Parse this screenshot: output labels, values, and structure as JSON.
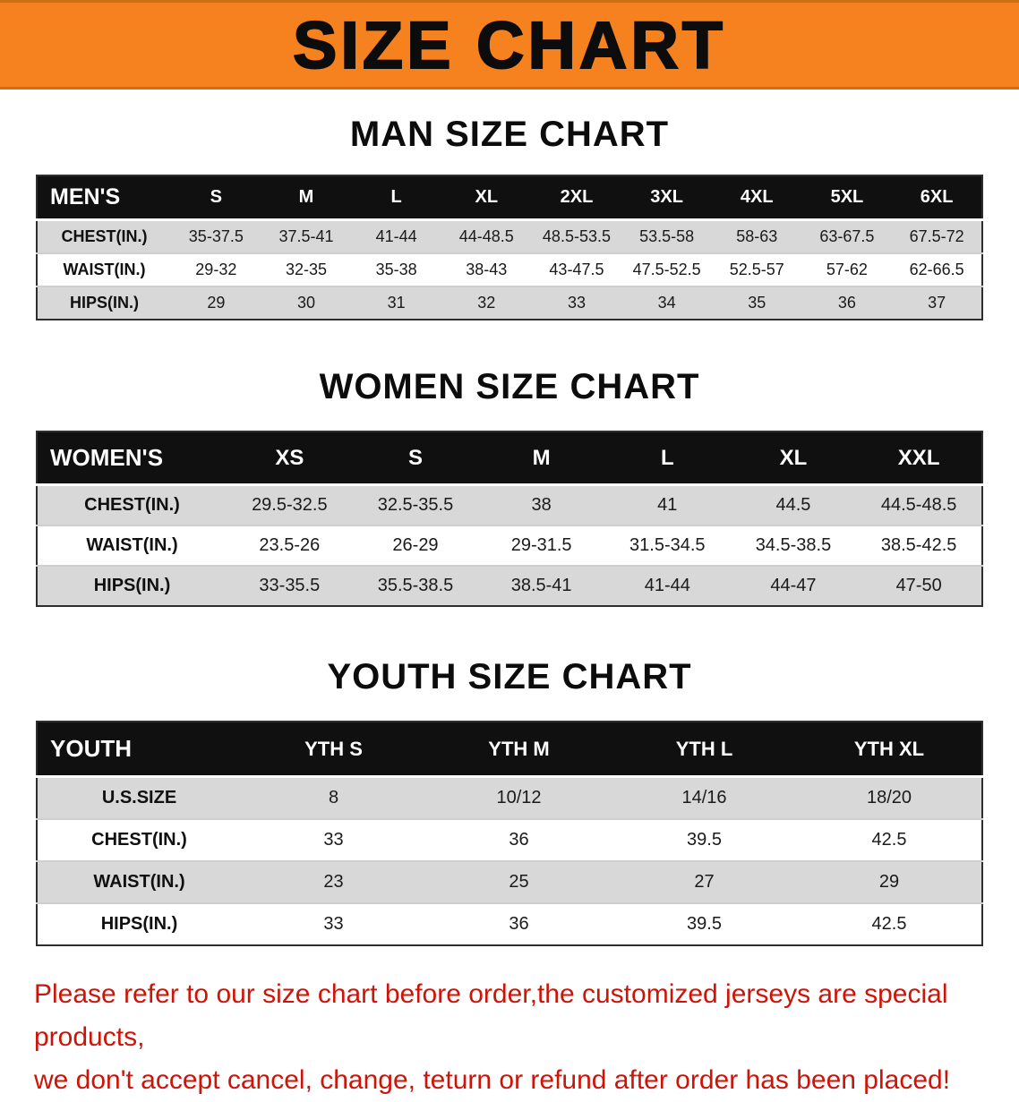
{
  "banner": {
    "title": "SIZE CHART",
    "background_color": "#F5821F",
    "text_color": "#0C0C0C"
  },
  "sections": {
    "men": {
      "heading": "MAN SIZE CHART",
      "table": {
        "header": [
          "MEN'S",
          "S",
          "M",
          "L",
          "XL",
          "2XL",
          "3XL",
          "4XL",
          "5XL",
          "6XL"
        ],
        "rows": [
          [
            "CHEST(IN.)",
            "35-37.5",
            "37.5-41",
            "41-44",
            "44-48.5",
            "48.5-53.5",
            "53.5-58",
            "58-63",
            "63-67.5",
            "67.5-72"
          ],
          [
            "WAIST(IN.)",
            "29-32",
            "32-35",
            "35-38",
            "38-43",
            "43-47.5",
            "47.5-52.5",
            "52.5-57",
            "57-62",
            "62-66.5"
          ],
          [
            "HIPS(IN.)",
            "29",
            "30",
            "31",
            "32",
            "33",
            "34",
            "35",
            "36",
            "37"
          ]
        ]
      }
    },
    "women": {
      "heading": "WOMEN SIZE CHART",
      "table": {
        "header": [
          "WOMEN'S",
          "XS",
          "S",
          "M",
          "L",
          "XL",
          "XXL"
        ],
        "rows": [
          [
            "CHEST(IN.)",
            "29.5-32.5",
            "32.5-35.5",
            "38",
            "41",
            "44.5",
            "44.5-48.5"
          ],
          [
            "WAIST(IN.)",
            "23.5-26",
            "26-29",
            "29-31.5",
            "31.5-34.5",
            "34.5-38.5",
            "38.5-42.5"
          ],
          [
            "HIPS(IN.)",
            "33-35.5",
            "35.5-38.5",
            "38.5-41",
            "41-44",
            "44-47",
            "47-50"
          ]
        ]
      }
    },
    "youth": {
      "heading": "YOUTH SIZE CHART",
      "table": {
        "header": [
          "YOUTH",
          "YTH S",
          "YTH M",
          "YTH L",
          "YTH XL"
        ],
        "rows": [
          [
            "U.S.SIZE",
            "8",
            "10/12",
            "14/16",
            "18/20"
          ],
          [
            "CHEST(IN.)",
            "33",
            "36",
            "39.5",
            "42.5"
          ],
          [
            "WAIST(IN.)",
            "23",
            "25",
            "27",
            "29"
          ],
          [
            "HIPS(IN.)",
            "33",
            "36",
            "39.5",
            "42.5"
          ]
        ]
      }
    }
  },
  "footer_note": {
    "color": "#CC1508",
    "line1": "Please refer to our size chart before order,the customized jerseys are special products,",
    "line2": "we don't accept cancel, change, teturn or refund after order has been placed!"
  }
}
